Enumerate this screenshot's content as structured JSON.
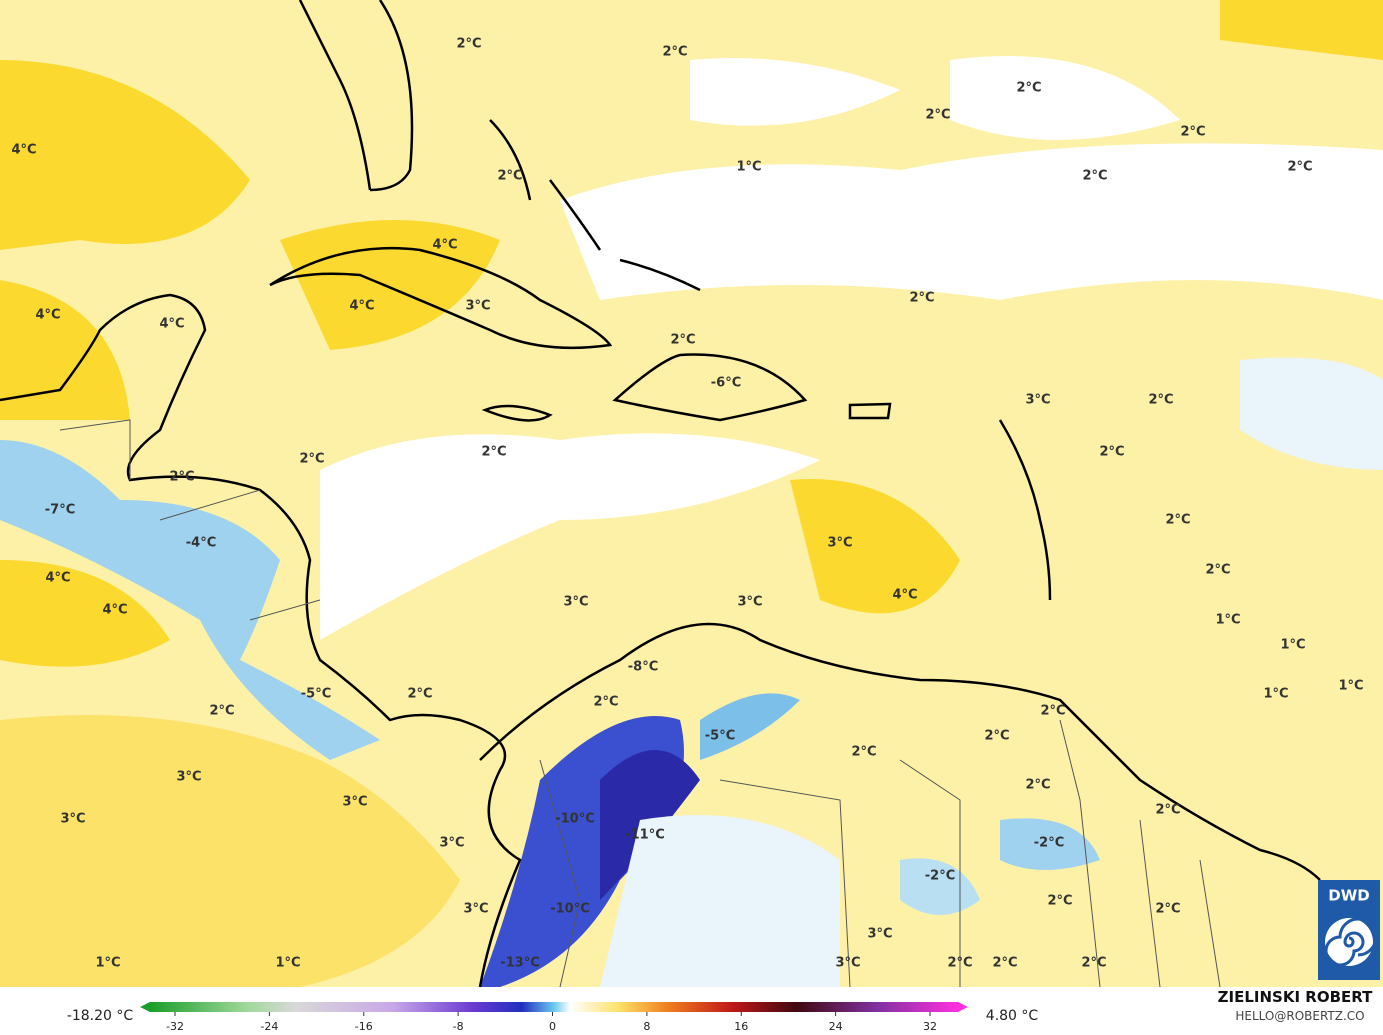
{
  "labels": [
    "2°C",
    "2°C",
    "2°C",
    "2°C",
    "2°C",
    "4°C",
    "1°C",
    "2°C",
    "2°C",
    "2°C",
    "4°C",
    "2°C",
    "4°C",
    "3°C",
    "4°C",
    "4°C",
    "2°C",
    "-6°C",
    "3°C",
    "2°C",
    "2°C",
    "2°C",
    "2°C",
    "2°C",
    "-7°C",
    "-4°C",
    "3°C",
    "2°C",
    "2°C",
    "4°C",
    "3°C",
    "3°C",
    "4°C",
    "4°C",
    "1°C",
    "1°C",
    "-8°C",
    "1°C",
    "1°C",
    "2°C",
    "-5°C",
    "2°C",
    "2°C",
    "2°C",
    "-5°C",
    "2°C",
    "2°C",
    "3°C",
    "3°C",
    "2°C",
    "2°C",
    "3°C",
    "-10°C",
    "-11°C",
    "3°C",
    "-2°C",
    "-2°C",
    "2°C",
    "3°C",
    "-10°C",
    "2°C",
    "3°C",
    "1°C",
    "1°C",
    "-13°C",
    "3°C",
    "2°C",
    "2°C",
    "2°C"
  ],
  "colorbar": {
    "min_label": "-18.20 °C",
    "max_label": "4.80 °C",
    "ticks": [
      -32,
      -24,
      -16,
      -8,
      0,
      8,
      16,
      24,
      32
    ]
  },
  "credit": {
    "author": "ZIELINSKI ROBERT",
    "email": "HELLO@ROBERTZ.CO"
  },
  "logo": "DWD"
}
